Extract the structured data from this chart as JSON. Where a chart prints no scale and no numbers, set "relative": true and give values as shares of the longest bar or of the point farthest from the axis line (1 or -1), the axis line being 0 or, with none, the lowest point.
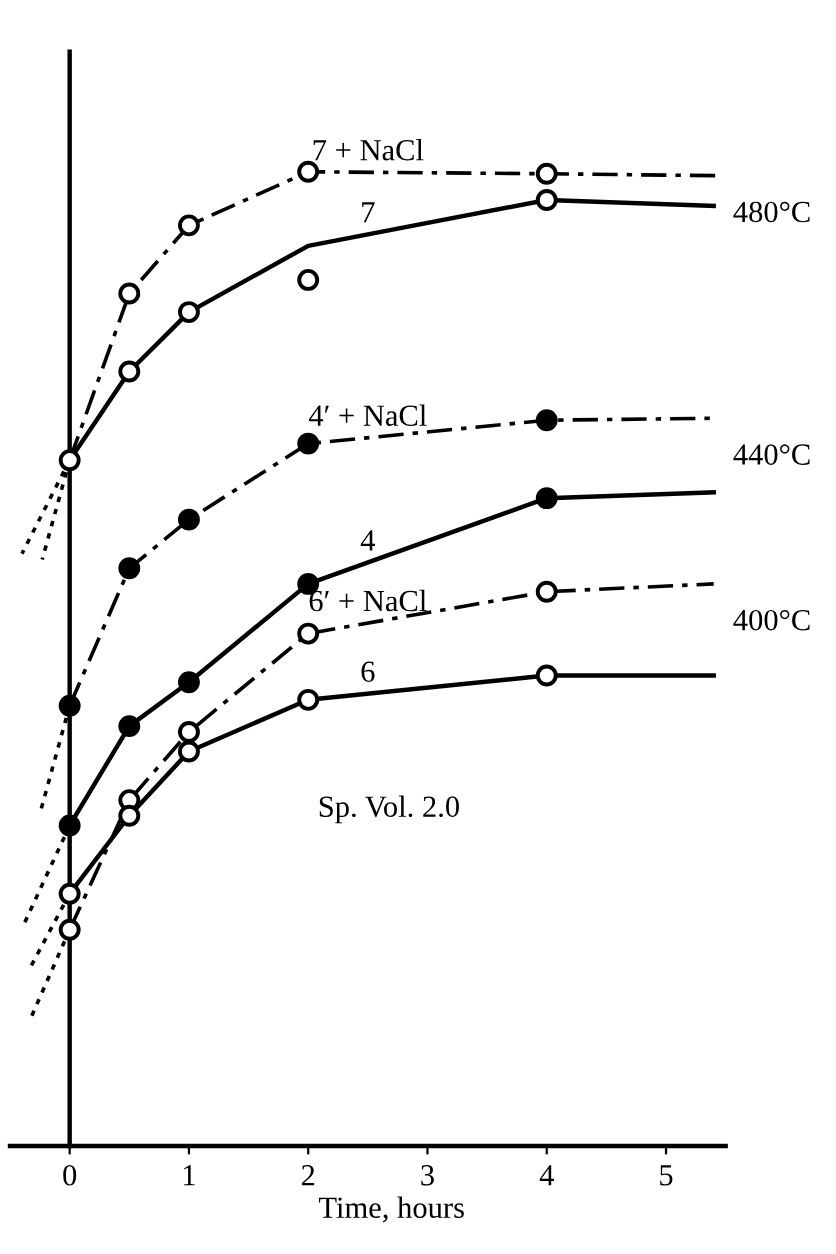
{
  "chart_data": {
    "type": "line",
    "xlabel": "Time, hours",
    "relative": true,
    "xlim": [
      -0.5,
      5.5
    ],
    "xticks": [
      0,
      1,
      2,
      3,
      4,
      5
    ],
    "legend": false,
    "series": [
      {
        "name": "7 + NaCl",
        "line_style": "dashed",
        "color": "#000000",
        "x": [
          0,
          0.5,
          1,
          2,
          4,
          5.42
        ],
        "values": [
          0.704,
          0.875,
          0.945,
          1.0,
          0.998,
          0.996
        ]
      },
      {
        "name": "7",
        "line_style": "solid",
        "color": "#000000",
        "x": [
          0,
          0.5,
          1,
          2,
          4,
          5.4
        ],
        "values": [
          0.704,
          0.795,
          0.856,
          0.924,
          0.971,
          0.965
        ]
      },
      {
        "name": "4′ + NaCl",
        "line_style": "dashed",
        "color": "#000000",
        "x": [
          0,
          0.5,
          1,
          2,
          4,
          5.4
        ],
        "values": [
          0.452,
          0.593,
          0.643,
          0.721,
          0.745,
          0.747
        ]
      },
      {
        "name": "4",
        "line_style": "solid",
        "color": "#000000",
        "x": [
          0,
          0.5,
          1,
          2,
          4,
          5.4
        ],
        "values": [
          0.329,
          0.431,
          0.476,
          0.577,
          0.665,
          0.671
        ]
      },
      {
        "name": "6′ + NaCl",
        "line_style": "dashed",
        "color": "#000000",
        "x": [
          0,
          0.5,
          1,
          2,
          4,
          5.4
        ],
        "values": [
          0.222,
          0.355,
          0.425,
          0.526,
          0.569,
          0.577
        ]
      },
      {
        "name": "6",
        "line_style": "solid",
        "color": "#000000",
        "x": [
          0,
          0.5,
          1,
          2,
          4,
          5.4
        ],
        "values": [
          0.259,
          0.339,
          0.405,
          0.458,
          0.483,
          0.483
        ]
      },
      {
        "type": "line",
        "line_style": "dotted",
        "color": "#000000",
        "x": [
          0,
          -0.4
        ],
        "values": [
          0.704,
          0.608
        ]
      },
      {
        "type": "line",
        "line_style": "dotted",
        "color": "#000000",
        "x": [
          0,
          -0.23
        ],
        "values": [
          0.704,
          0.602
        ]
      },
      {
        "type": "line",
        "line_style": "dotted",
        "color": "#000000",
        "x": [
          0,
          -0.25
        ],
        "values": [
          0.452,
          0.341
        ]
      },
      {
        "type": "line",
        "line_style": "dotted",
        "color": "#000000",
        "x": [
          0,
          -0.39
        ],
        "values": [
          0.329,
          0.226
        ]
      },
      {
        "type": "line",
        "line_style": "dotted",
        "color": "#000000",
        "x": [
          0,
          -0.34
        ],
        "values": [
          0.259,
          0.181
        ]
      },
      {
        "type": "line",
        "line_style": "dotted",
        "color": "#000000",
        "x": [
          0,
          -0.32
        ],
        "values": [
          0.222,
          0.133
        ]
      },
      {
        "type": "scatter",
        "marker": "circle",
        "color": "#ffffff",
        "x": [
          0,
          0.5,
          1,
          2,
          4
        ],
        "values": [
          0.704,
          0.875,
          0.945,
          1.0,
          0.998
        ]
      },
      {
        "type": "scatter",
        "marker": "circle",
        "color": "#ffffff",
        "x": [
          0.5,
          1,
          2,
          4
        ],
        "values": [
          0.795,
          0.856,
          0.889,
          0.971
        ]
      },
      {
        "type": "scatter",
        "marker": "circle",
        "color": "#000000",
        "x": [
          0,
          0.5,
          1,
          2,
          4
        ],
        "values": [
          0.452,
          0.593,
          0.643,
          0.721,
          0.745
        ]
      },
      {
        "type": "scatter",
        "marker": "circle",
        "color": "#000000",
        "x": [
          0,
          0.5,
          1,
          2,
          4
        ],
        "values": [
          0.329,
          0.431,
          0.476,
          0.577,
          0.665
        ]
      },
      {
        "type": "scatter",
        "marker": "circle",
        "color": "#ffffff",
        "x": [
          0,
          0.5,
          1,
          2,
          4
        ],
        "values": [
          0.222,
          0.355,
          0.425,
          0.526,
          0.569
        ]
      },
      {
        "type": "scatter",
        "marker": "circle",
        "color": "#ffffff",
        "x": [
          0,
          0.5,
          1,
          2,
          4
        ],
        "values": [
          0.259,
          0.339,
          0.405,
          0.458,
          0.483
        ]
      }
    ],
    "annotations": [
      "480°C",
      "440°C",
      "400°C",
      "Sp. Vol. 2.0"
    ]
  }
}
